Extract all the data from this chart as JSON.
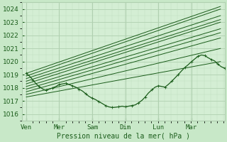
{
  "xlabel": "Pression niveau de la mer( hPa )",
  "bg_color": "#c8e8c8",
  "plot_bg_color": "#d4eed4",
  "grid_major_color": "#b0d0b0",
  "grid_minor_color": "#c0dcc0",
  "line_color": "#1a5c1a",
  "ylim": [
    1015.5,
    1024.5
  ],
  "yticks": [
    1016,
    1017,
    1018,
    1019,
    1020,
    1021,
    1022,
    1023,
    1024
  ],
  "xtick_labels": [
    "Ven",
    "Mer",
    "Sam",
    "Dim",
    "Lun",
    "Mar"
  ],
  "xtick_positions": [
    0.0,
    0.83,
    1.67,
    2.5,
    3.33,
    4.17
  ],
  "xlim": [
    -0.1,
    5.0
  ],
  "font_color": "#1a5c1a",
  "fan_lines": [
    {
      "x0": 0.0,
      "y0": 1019.1,
      "x1": 4.9,
      "y1": 1024.2
    },
    {
      "x0": 0.0,
      "y0": 1018.9,
      "x1": 4.9,
      "y1": 1024.0
    },
    {
      "x0": 0.0,
      "y0": 1018.7,
      "x1": 4.9,
      "y1": 1023.5
    },
    {
      "x0": 0.0,
      "y0": 1018.5,
      "x1": 4.9,
      "y1": 1023.2
    },
    {
      "x0": 0.0,
      "y0": 1018.3,
      "x1": 4.9,
      "y1": 1023.0
    },
    {
      "x0": 0.0,
      "y0": 1018.1,
      "x1": 4.9,
      "y1": 1022.5
    },
    {
      "x0": 0.0,
      "y0": 1017.9,
      "x1": 4.9,
      "y1": 1022.2
    },
    {
      "x0": 0.0,
      "y0": 1017.7,
      "x1": 4.9,
      "y1": 1021.8
    },
    {
      "x0": 0.0,
      "y0": 1017.5,
      "x1": 4.9,
      "y1": 1021.0
    },
    {
      "x0": 0.0,
      "y0": 1017.3,
      "x1": 4.9,
      "y1": 1020.0
    }
  ],
  "wavy_x": [
    0.0,
    0.08,
    0.17,
    0.25,
    0.33,
    0.42,
    0.5,
    0.58,
    0.67,
    0.75,
    0.83,
    0.92,
    1.0,
    1.08,
    1.17,
    1.25,
    1.33,
    1.42,
    1.5,
    1.58,
    1.67,
    1.75,
    1.83,
    1.92,
    2.0,
    2.08,
    2.17,
    2.25,
    2.33,
    2.42,
    2.5,
    2.58,
    2.67,
    2.75,
    2.83,
    2.92,
    3.0,
    3.08,
    3.17,
    3.25,
    3.33,
    3.42,
    3.5,
    3.58,
    3.67,
    3.75,
    3.83,
    3.92,
    4.0,
    4.08,
    4.17,
    4.25,
    4.33,
    4.42,
    4.5,
    4.58,
    4.67,
    4.75,
    4.83,
    4.92,
    5.0
  ],
  "wavy_y": [
    1019.1,
    1018.9,
    1018.6,
    1018.3,
    1018.1,
    1017.9,
    1017.8,
    1017.9,
    1018.0,
    1018.1,
    1018.25,
    1018.3,
    1018.35,
    1018.25,
    1018.15,
    1018.05,
    1017.9,
    1017.75,
    1017.55,
    1017.35,
    1017.2,
    1017.1,
    1016.95,
    1016.8,
    1016.65,
    1016.55,
    1016.5,
    1016.52,
    1016.55,
    1016.6,
    1016.55,
    1016.6,
    1016.65,
    1016.7,
    1016.85,
    1017.05,
    1017.3,
    1017.6,
    1017.85,
    1018.05,
    1018.15,
    1018.1,
    1018.05,
    1018.25,
    1018.5,
    1018.75,
    1019.0,
    1019.3,
    1019.55,
    1019.75,
    1020.0,
    1020.2,
    1020.4,
    1020.5,
    1020.45,
    1020.3,
    1020.15,
    1020.05,
    1019.8,
    1019.6,
    1019.5
  ]
}
